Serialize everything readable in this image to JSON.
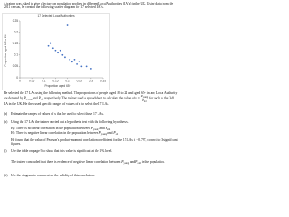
{
  "intro": "A trainer was asked to give a lecture on population profiles in different Local Authorities (LA's) in the UK. Using data from the 2011 census, he created the following scatter diagram for 17 selected LA's.",
  "chart_data": {
    "type": "scatter",
    "title": "17 Selected Local Authorities",
    "x_label": "Proportion aged 65+",
    "y_label": "Proportion aged 18 to 24",
    "x": [
      0.12,
      0.13,
      0.14,
      0.15,
      0.16,
      0.17,
      0.18,
      0.19,
      0.2,
      0.21,
      0.22,
      0.23,
      0.24,
      0.25,
      0.26,
      0.28,
      0.3
    ],
    "values": [
      0.14,
      0.15,
      0.13,
      0.12,
      0.11,
      0.12,
      0.1,
      0.09,
      0.23,
      0.08,
      0.07,
      0.08,
      0.06,
      0.07,
      0.05,
      0.05,
      0.04
    ],
    "color": "#4472c4",
    "xlim": [
      0,
      0.35
    ],
    "xticks": [
      0,
      0.05,
      0.1,
      0.15,
      0.2,
      0.25,
      0.3,
      0.35
    ],
    "ylim": [
      0,
      0.25
    ],
    "yticks": [
      0,
      0.05,
      0.1,
      0.15,
      0.2,
      0.25
    ],
    "grid": false
  },
  "symbols": {
    "P": "P",
    "young": "young",
    "old": "old",
    "H": "H",
    "zero": "0",
    "one": "1",
    "x": "x"
  },
  "method": [
    "He selected the 17 LAs using the following method. The proportions of people aged 18 to 24 and aged 65+ in any Local Authority are denoted by ",
    " and ",
    " respectively. The trainer used a spreadsheet to calculate the value of ",
    " = ",
    " for each of the 348 LA in the UK. He then used specific ranges of values of x to select the 17 LAs."
  ],
  "part_a": {
    "label": "(a)",
    "text": "Estimate the ranges of values of x that he used to select these 17 LAs."
  },
  "part_b": {
    "label": "(b)",
    "text": "Using the 17 LAs the trainer carried out a hypothesis test with the following hypotheses."
  },
  "h0": [
    ": There is no linear correlation in the population between ",
    " and "
  ],
  "h1": [
    ": There is negative linear correlation in the population between ",
    " and "
  ],
  "found": "He found that the value of Pearson's product-moment correlation coefficient for the 17 LAs is −0.797, correct to 3 significant figures.",
  "part_b_i": {
    "label": "(i)",
    "text": "Use the table on page 9 to show that this value is significant at the 1% level."
  },
  "conclusion": [
    "The trainer concluded that there is evidence of negative linear correlation between ",
    " and ",
    " in the population."
  ],
  "part_b_ii": {
    "label": "(ii)",
    "text": "Use the diagram to comment on the validity of this conclusion."
  }
}
